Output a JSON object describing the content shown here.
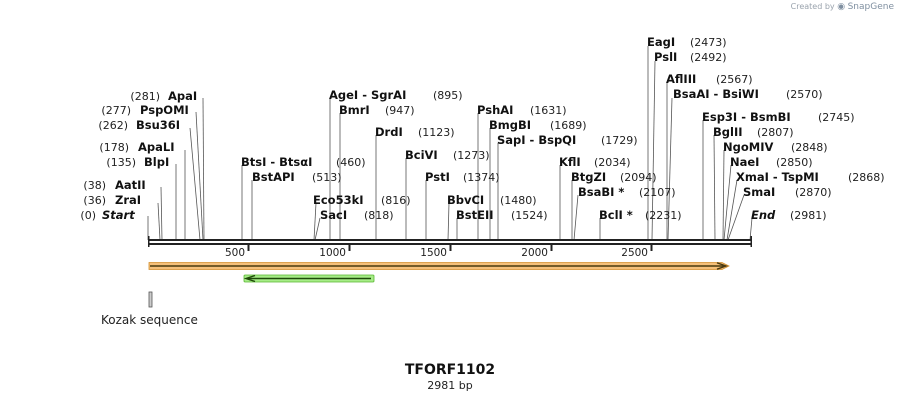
{
  "watermark": {
    "prefix": "Created by",
    "brand": "SnapGene"
  },
  "map": {
    "name": "TFORF1102",
    "length_label": "2981 bp",
    "length": 2981,
    "ticks": [
      "500",
      "1000",
      "1500",
      "2000",
      "2500"
    ],
    "sites_left": [
      {
        "name": "Start",
        "pos": "(0)",
        "italic": true
      },
      {
        "name": "ZraI",
        "pos": "(36)"
      },
      {
        "name": "AatII",
        "pos": "(38)"
      },
      {
        "name": "BlpI",
        "pos": "(135)"
      },
      {
        "name": "ApaLI",
        "pos": "(178)"
      },
      {
        "name": "Bsu36I",
        "pos": "(262)"
      },
      {
        "name": "PspOMI",
        "pos": "(277)"
      },
      {
        "name": "ApaI",
        "pos": "(281)"
      }
    ],
    "sites_right": [
      {
        "name": "BtsI  -  BtsαI",
        "pos": "(460)"
      },
      {
        "name": "BstAPI",
        "pos": "(513)"
      },
      {
        "name": "AgeI  -  SgrAI",
        "pos": "(895)"
      },
      {
        "name": "BmrI",
        "pos": "(947)"
      },
      {
        "name": "Eco53kI",
        "pos": "(816)"
      },
      {
        "name": "SacI",
        "pos": "(818)"
      },
      {
        "name": "DrdI",
        "pos": "(1123)"
      },
      {
        "name": "BciVI",
        "pos": "(1273)"
      },
      {
        "name": "PstI",
        "pos": "(1374)"
      },
      {
        "name": "BbvCI",
        "pos": "(1480)"
      },
      {
        "name": "BstEII",
        "pos": "(1524)"
      },
      {
        "name": "PshAI",
        "pos": "(1631)"
      },
      {
        "name": "BmgBI",
        "pos": "(1689)"
      },
      {
        "name": "SapI  -  BspQI",
        "pos": "(1729)"
      },
      {
        "name": "KflI",
        "pos": "(2034)"
      },
      {
        "name": "BtgZI",
        "pos": "(2094)"
      },
      {
        "name": "BsaBI *",
        "pos": "(2107)"
      },
      {
        "name": "BclI *",
        "pos": "(2231)"
      },
      {
        "name": "EagI",
        "pos": "(2473)"
      },
      {
        "name": "PslI",
        "pos": "(2492)"
      },
      {
        "name": "AflIII",
        "pos": "(2567)"
      },
      {
        "name": "BsaAI  -  BsiWI",
        "pos": "(2570)"
      },
      {
        "name": "Esp3I  -  BsmBI",
        "pos": "(2745)"
      },
      {
        "name": "BglII",
        "pos": "(2807)"
      },
      {
        "name": "NgoMIV",
        "pos": "(2848)"
      },
      {
        "name": "NaeI",
        "pos": "(2850)"
      },
      {
        "name": "XmaI  -  TspMI",
        "pos": "(2868)"
      },
      {
        "name": "SmaI",
        "pos": "(2870)"
      },
      {
        "name": "End",
        "pos": "(2981)",
        "italic": true
      }
    ],
    "features": [
      {
        "name": "ORF",
        "color": "#f5c07a",
        "start": 0,
        "end": 2981,
        "direction": "forward"
      },
      {
        "name": "green-feature",
        "color": "#7fd957",
        "start": 490,
        "end": 1120,
        "direction": "reverse"
      },
      {
        "name": "Kozak sequence",
        "color": "#cccccc",
        "start": 0,
        "end": 10
      }
    ]
  }
}
